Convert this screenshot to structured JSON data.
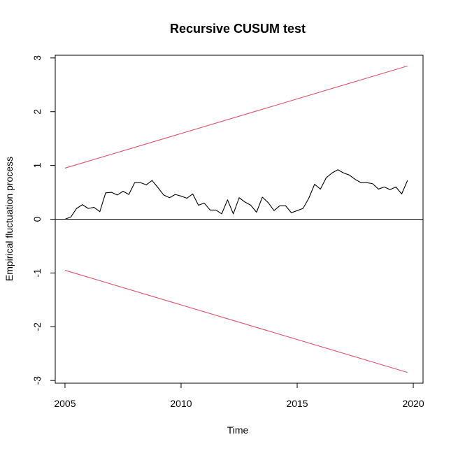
{
  "chart_data": {
    "type": "line",
    "title": "Recursive CUSUM test",
    "xlabel": "Time",
    "ylabel": "Empirical fluctuation process",
    "xlim": [
      2004.58,
      2020.42
    ],
    "ylim": [
      -3.05,
      3.05
    ],
    "x_ticks": [
      2005,
      2010,
      2015,
      2020
    ],
    "x_tick_labels": [
      "2005",
      "2010",
      "2015",
      "2020"
    ],
    "y_ticks": [
      -3,
      -2,
      -1,
      0,
      1,
      2,
      3
    ],
    "y_tick_labels": [
      "-3",
      "-2",
      "-1",
      "0",
      "1",
      "2",
      "3"
    ],
    "grid": false,
    "legend": "none",
    "reference_line": {
      "y": 0,
      "color": "#000000"
    },
    "series": [
      {
        "color": "#000000",
        "x": [
          2005.0,
          2005.25,
          2005.5,
          2005.75,
          2006.0,
          2006.25,
          2006.5,
          2006.75,
          2007.0,
          2007.25,
          2007.5,
          2007.75,
          2008.0,
          2008.25,
          2008.5,
          2008.75,
          2009.0,
          2009.25,
          2009.5,
          2009.75,
          2010.0,
          2010.25,
          2010.5,
          2010.75,
          2011.0,
          2011.25,
          2011.5,
          2011.75,
          2012.0,
          2012.25,
          2012.5,
          2012.75,
          2013.0,
          2013.25,
          2013.5,
          2013.75,
          2014.0,
          2014.25,
          2014.5,
          2014.75,
          2015.0,
          2015.25,
          2015.5,
          2015.75,
          2016.0,
          2016.25,
          2016.5,
          2016.75,
          2017.0,
          2017.25,
          2017.5,
          2017.75,
          2018.0,
          2018.25,
          2018.5,
          2018.75,
          2019.0,
          2019.25,
          2019.5,
          2019.75
        ],
        "y": [
          0.0,
          0.04,
          0.2,
          0.27,
          0.2,
          0.22,
          0.14,
          0.49,
          0.5,
          0.45,
          0.52,
          0.46,
          0.68,
          0.68,
          0.64,
          0.72,
          0.59,
          0.45,
          0.4,
          0.46,
          0.43,
          0.39,
          0.47,
          0.26,
          0.3,
          0.17,
          0.17,
          0.1,
          0.36,
          0.1,
          0.4,
          0.32,
          0.26,
          0.13,
          0.41,
          0.31,
          0.16,
          0.25,
          0.25,
          0.12,
          0.16,
          0.2,
          0.39,
          0.65,
          0.56,
          0.77,
          0.86,
          0.92,
          0.86,
          0.82,
          0.74,
          0.68,
          0.68,
          0.66,
          0.56,
          0.6,
          0.55,
          0.6,
          0.47,
          0.72
        ]
      },
      {
        "color": "#df536b",
        "x": [
          2005.0,
          2019.75
        ],
        "y": [
          0.95,
          2.85
        ]
      },
      {
        "color": "#df536b",
        "x": [
          2005.0,
          2019.75
        ],
        "y": [
          -0.95,
          -2.85
        ]
      }
    ]
  }
}
